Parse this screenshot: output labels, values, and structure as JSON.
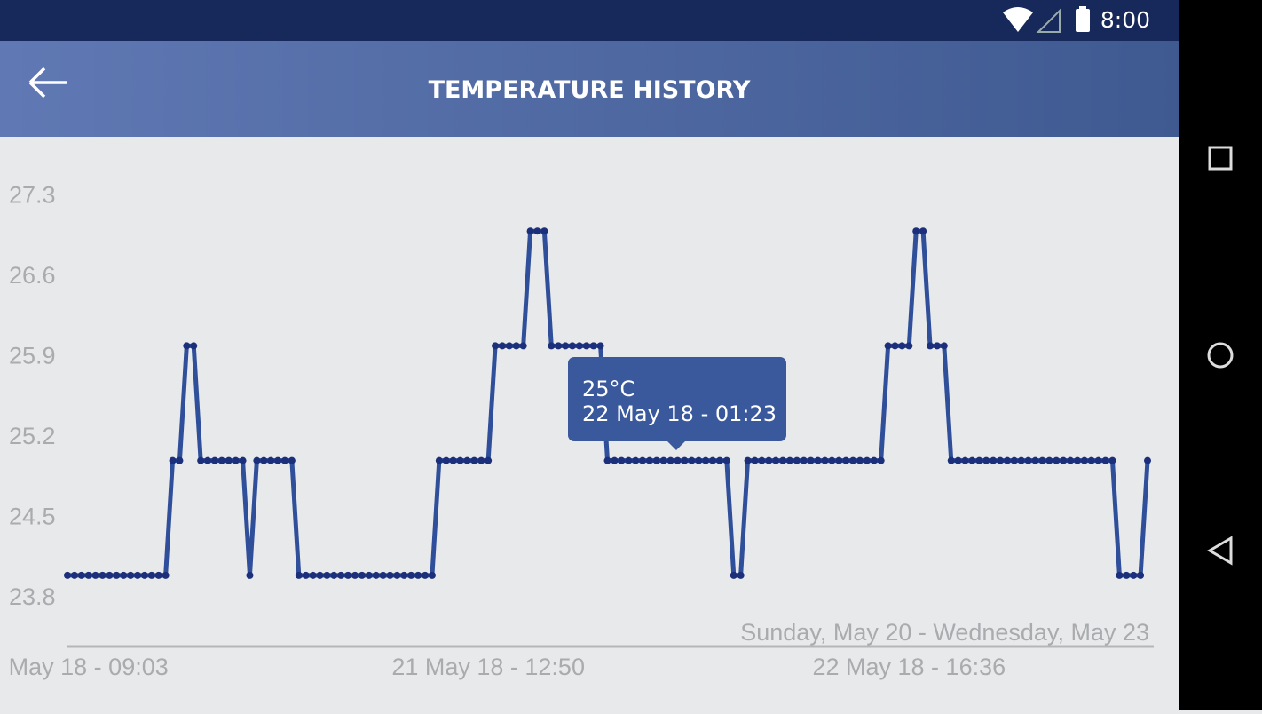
{
  "status_bar": {
    "time": "8:00"
  },
  "header": {
    "title": "TEMPERATURE HISTORY"
  },
  "chart_data": {
    "type": "line",
    "subtitle": "Sunday, May 20 - Wednesday, May 23",
    "annotations": [
      "25°C",
      "22 May 18 - 01:23"
    ],
    "color": "#2f4f9a",
    "marker_color": "#1c2f7a",
    "values": [
      24,
      24,
      24,
      24,
      24,
      24,
      24,
      24,
      24,
      24,
      24,
      24,
      24,
      24,
      24,
      25,
      25,
      26,
      26,
      25,
      25,
      25,
      25,
      25,
      25,
      25,
      24,
      25,
      25,
      25,
      25,
      25,
      25,
      24,
      24,
      24,
      24,
      24,
      24,
      24,
      24,
      24,
      24,
      24,
      24,
      24,
      24,
      24,
      24,
      24,
      24,
      24,
      24,
      25,
      25,
      25,
      25,
      25,
      25,
      25,
      25,
      26,
      26,
      26,
      26,
      26,
      27,
      27,
      27,
      26,
      26,
      26,
      26,
      26,
      26,
      26,
      26,
      25,
      25,
      25,
      25,
      25,
      25,
      25,
      25,
      25,
      25,
      25,
      25,
      25,
      25,
      25,
      25,
      25,
      25,
      24,
      24,
      25,
      25,
      25,
      25,
      25,
      25,
      25,
      25,
      25,
      25,
      25,
      25,
      25,
      25,
      25,
      25,
      25,
      25,
      25,
      25,
      26,
      26,
      26,
      26,
      27,
      27,
      26,
      26,
      26,
      25,
      25,
      25,
      25,
      25,
      25,
      25,
      25,
      25,
      25,
      25,
      25,
      25,
      25,
      25,
      25,
      25,
      25,
      25,
      25,
      25,
      25,
      25,
      25,
      24,
      24,
      24,
      24,
      25
    ],
    "xlim": [
      0,
      154
    ],
    "xticks": [
      {
        "value": 3,
        "label": "May 18 - 09:03"
      },
      {
        "value": 60,
        "label": "21 May 18 - 12:50"
      },
      {
        "value": 120,
        "label": "22 May 18 - 16:36"
      }
    ],
    "ylim": [
      23.38,
      27.5
    ],
    "yticks": [
      23.8,
      24.5,
      25.2,
      25.9,
      26.6,
      27.3
    ],
    "grid": false
  }
}
